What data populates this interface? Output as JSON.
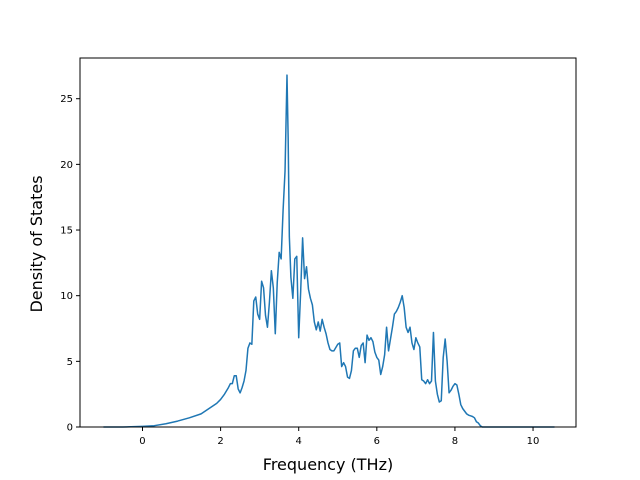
{
  "chart_data": {
    "type": "line",
    "title": "",
    "xlabel": "Frequency (THz)",
    "ylabel": "Density of States",
    "xlim": [
      -1.6,
      11.1
    ],
    "ylim": [
      0,
      28.1
    ],
    "x_ticks": [
      0,
      2,
      4,
      6,
      8,
      10
    ],
    "y_ticks": [
      0,
      5,
      10,
      15,
      20,
      25
    ],
    "x_tick_labels": [
      "0",
      "2",
      "4",
      "6",
      "8",
      "10"
    ],
    "y_tick_labels": [
      "0",
      "5",
      "10",
      "15",
      "20",
      "25"
    ],
    "grid": false,
    "legend": "none",
    "series": [
      {
        "color": "#1f77b4",
        "x": [
          -1.0,
          -0.5,
          0.0,
          0.3,
          0.6,
          0.9,
          1.2,
          1.5,
          1.7,
          1.9,
          2.0,
          2.1,
          2.2,
          2.25,
          2.3,
          2.35,
          2.4,
          2.45,
          2.5,
          2.55,
          2.6,
          2.65,
          2.7,
          2.75,
          2.8,
          2.85,
          2.9,
          2.95,
          3.0,
          3.05,
          3.1,
          3.15,
          3.2,
          3.25,
          3.3,
          3.35,
          3.4,
          3.45,
          3.5,
          3.55,
          3.6,
          3.65,
          3.7,
          3.73,
          3.76,
          3.8,
          3.85,
          3.9,
          3.95,
          4.0,
          4.05,
          4.1,
          4.15,
          4.2,
          4.25,
          4.3,
          4.35,
          4.4,
          4.45,
          4.5,
          4.55,
          4.6,
          4.65,
          4.7,
          4.75,
          4.8,
          4.85,
          4.9,
          5.0,
          5.05,
          5.1,
          5.15,
          5.2,
          5.25,
          5.3,
          5.35,
          5.4,
          5.45,
          5.5,
          5.55,
          5.6,
          5.65,
          5.7,
          5.75,
          5.8,
          5.85,
          5.9,
          5.95,
          6.0,
          6.05,
          6.1,
          6.15,
          6.2,
          6.25,
          6.3,
          6.35,
          6.4,
          6.45,
          6.5,
          6.55,
          6.6,
          6.65,
          6.7,
          6.75,
          6.8,
          6.85,
          6.9,
          6.95,
          7.0,
          7.05,
          7.1,
          7.15,
          7.2,
          7.25,
          7.3,
          7.35,
          7.4,
          7.45,
          7.5,
          7.55,
          7.6,
          7.65,
          7.7,
          7.75,
          7.8,
          7.85,
          7.9,
          7.95,
          8.0,
          8.05,
          8.1,
          8.15,
          8.2,
          8.25,
          8.3,
          8.35,
          8.4,
          8.45,
          8.5,
          8.55,
          8.6,
          8.65,
          8.7,
          8.75,
          8.8,
          8.9,
          9.0,
          9.2,
          9.4,
          9.5,
          9.6,
          9.7,
          10.0,
          10.3,
          10.55
        ],
        "y": [
          0.0,
          0.0,
          0.05,
          0.1,
          0.25,
          0.45,
          0.7,
          1.0,
          1.4,
          1.8,
          2.1,
          2.5,
          3.0,
          3.3,
          3.3,
          3.9,
          3.9,
          2.9,
          2.6,
          3.0,
          3.5,
          4.3,
          6.0,
          6.4,
          6.3,
          9.6,
          9.9,
          8.6,
          8.2,
          11.1,
          10.6,
          8.5,
          7.6,
          9.5,
          11.9,
          10.6,
          7.1,
          11.0,
          13.3,
          12.8,
          16.5,
          19.5,
          26.8,
          22.0,
          14.5,
          11.4,
          9.8,
          12.8,
          13.0,
          6.8,
          10.3,
          14.4,
          11.3,
          12.2,
          10.5,
          9.8,
          9.3,
          8.0,
          7.4,
          8.0,
          7.3,
          8.2,
          7.6,
          7.1,
          6.4,
          5.9,
          5.8,
          5.8,
          6.3,
          6.4,
          4.6,
          4.9,
          4.6,
          3.8,
          3.7,
          4.3,
          5.8,
          6.0,
          6.0,
          5.3,
          6.2,
          6.4,
          4.9,
          7.0,
          6.6,
          6.8,
          6.5,
          5.7,
          5.3,
          5.1,
          4.0,
          4.6,
          5.5,
          7.6,
          5.8,
          6.7,
          7.6,
          8.6,
          8.8,
          9.1,
          9.5,
          10.0,
          9.1,
          7.6,
          7.2,
          7.6,
          6.4,
          5.9,
          6.8,
          6.4,
          6.1,
          3.6,
          3.5,
          3.3,
          3.6,
          3.3,
          3.5,
          7.2,
          3.5,
          2.5,
          1.9,
          2.0,
          5.3,
          6.7,
          5.0,
          2.6,
          2.8,
          3.1,
          3.3,
          3.2,
          2.5,
          1.7,
          1.4,
          1.2,
          1.0,
          0.9,
          0.85,
          0.8,
          0.7,
          0.4,
          0.3,
          0.1,
          0.0,
          0.0,
          0.0,
          0.0,
          0.0,
          0.0,
          0.0,
          0.0,
          0.0,
          0.0,
          0.0,
          0.0,
          0.0
        ]
      }
    ]
  }
}
